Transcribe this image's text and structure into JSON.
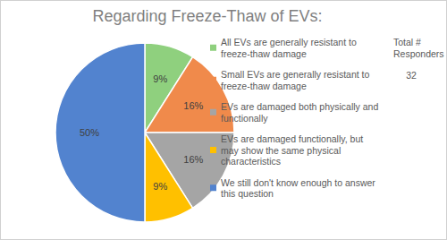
{
  "chart_data": {
    "type": "pie",
    "title": "Regarding Freeze-Thaw of EVs:",
    "categories": [
      "All EVs are generally resistant to freeze-thaw damage",
      "Small EVs are generally resistant to freeze-thaw damage",
      "EVs are damaged both physically and functionally",
      "EVs are damaged functionally, but may show the same physical characteristics",
      "We still don't know enough to answer this question"
    ],
    "values": [
      9,
      16,
      16,
      9,
      50
    ],
    "value_labels": [
      "9%",
      "16%",
      "16%",
      "9%",
      "50%"
    ],
    "colors": [
      "#8fd07e",
      "#f08a4b",
      "#a5a5a5",
      "#ffc000",
      "#5283cf"
    ],
    "data_labels": true,
    "legend": "right",
    "annotation": {
      "label": "Total # Responders",
      "value": 32
    }
  }
}
